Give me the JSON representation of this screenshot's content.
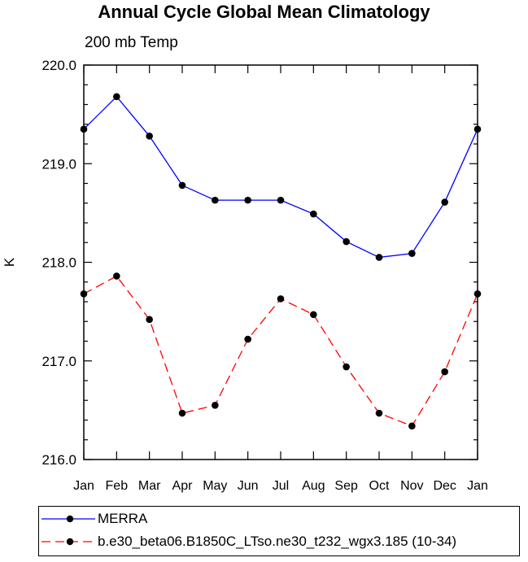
{
  "chart_data": {
    "type": "line",
    "title": "Annual Cycle Global Mean Climatology",
    "subtitle": "200 mb Temp",
    "xlabel": "",
    "ylabel": "K",
    "categories": [
      "Jan",
      "Feb",
      "Mar",
      "Apr",
      "May",
      "Jun",
      "Jul",
      "Aug",
      "Sep",
      "Oct",
      "Nov",
      "Dec",
      "Jan"
    ],
    "ylim": [
      216.0,
      220.0
    ],
    "yticks": [
      216.0,
      217.0,
      218.0,
      219.0,
      220.0
    ],
    "ytick_labels": [
      "216.0",
      "217.0",
      "218.0",
      "219.0",
      "220.0"
    ],
    "y_minor_step": 0.2,
    "grid": false,
    "legend_position": "bottom",
    "series": [
      {
        "name": "MERRA",
        "color": "#0000ff",
        "dashed": false,
        "values": [
          219.35,
          219.68,
          219.28,
          218.78,
          218.63,
          218.63,
          218.63,
          218.49,
          218.21,
          218.05,
          218.09,
          218.61,
          219.35
        ]
      },
      {
        "name": "b.e30_beta06.B1850C_LTso.ne30_t232_wgx3.185 (10-34)",
        "color": "#ff0000",
        "dashed": true,
        "values": [
          217.68,
          217.86,
          217.42,
          216.47,
          216.55,
          217.22,
          217.63,
          217.47,
          216.94,
          216.47,
          216.34,
          216.89,
          217.68
        ]
      }
    ]
  }
}
